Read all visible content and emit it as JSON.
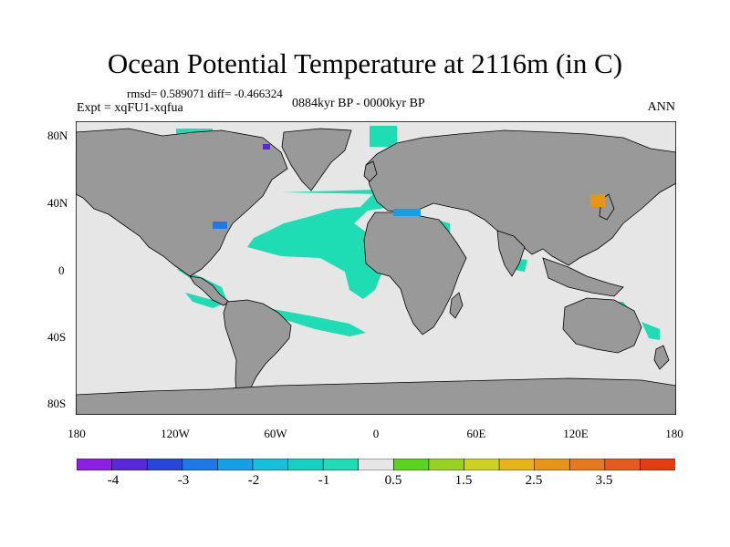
{
  "title": "Ocean Potential Temperature at 2116m (in C)",
  "stats": "rmsd= 0.589071 diff= -0.466324",
  "experiment": "Expt = xqFU1-xqfua",
  "period": "0884kyr BP - 0000kyr BP",
  "season": "ANN",
  "lat_labels": [
    "80N",
    "40N",
    "0",
    "40S",
    "80S"
  ],
  "lon_labels": [
    "180",
    "120W",
    "60W",
    "0",
    "60E",
    "120E",
    "180"
  ],
  "colorbar": {
    "colors": [
      "#8c1ee6",
      "#5a28dc",
      "#2846dc",
      "#1e78e6",
      "#14a0e6",
      "#14c0dc",
      "#14d2c3",
      "#1edcb4",
      "#e6e6e6",
      "#5ad21e",
      "#96d21e",
      "#cdd21e",
      "#e6b414",
      "#e69614",
      "#e6781e",
      "#e65a1e",
      "#e63c14"
    ],
    "labels": [
      "-4",
      "-3",
      "-2",
      "-1",
      "0.5",
      "1.5",
      "2.5",
      "3.5"
    ]
  },
  "map_colors": {
    "land": "#999999",
    "ocean_near_zero": "#e6e6e6",
    "ocean_cooler": "#1edcb4",
    "ocean_warmer": "#e69614"
  }
}
